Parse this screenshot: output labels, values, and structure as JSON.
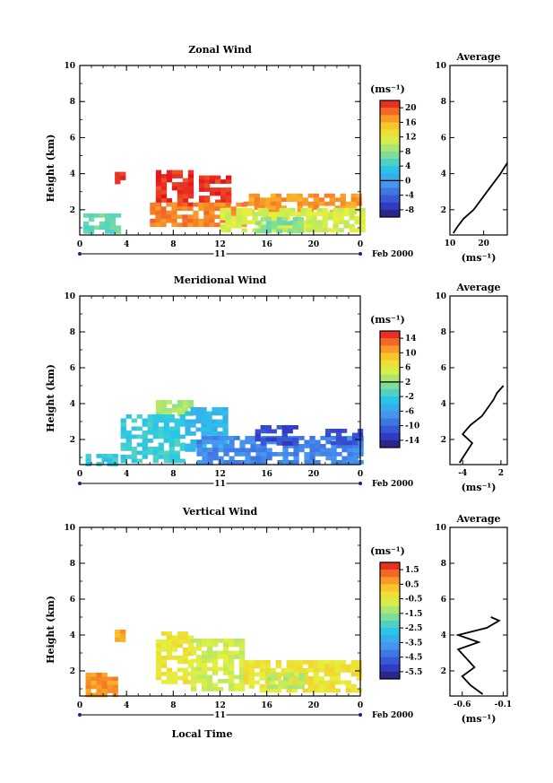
{
  "chart_data": [
    {
      "type": "heatmap",
      "title": "Zonal Wind",
      "ylabel": "Height (km)",
      "x_ticks": [
        "0",
        "4",
        "8",
        "12",
        "16",
        "20",
        "0"
      ],
      "y_ticks": [
        "2",
        "4",
        "6",
        "8",
        "10"
      ],
      "xlim": [
        0,
        24
      ],
      "ylim": [
        0.6,
        10
      ],
      "day_label": "11",
      "date_label": "Feb 2000",
      "colorbar_unit": "(ms⁻¹)",
      "colorbar_ticks": [
        "20",
        "16",
        "12",
        "8",
        "4",
        "0",
        "-4",
        "-8"
      ],
      "colorbar_range": [
        -10,
        22
      ],
      "colorbar_zero_line": 0,
      "regions": [
        {
          "x0": 0.3,
          "x1": 3.5,
          "y0": 0.7,
          "y1": 1.8,
          "value": 6
        },
        {
          "x0": 3.0,
          "x1": 3.6,
          "y0": 3.6,
          "y1": 4.1,
          "value": 21
        },
        {
          "x0": 6.5,
          "x1": 9.5,
          "y0": 2.3,
          "y1": 4.2,
          "value": 21
        },
        {
          "x0": 10.2,
          "x1": 12.6,
          "y0": 2.3,
          "y1": 3.9,
          "value": 21
        },
        {
          "x0": 6.0,
          "x1": 14.0,
          "y0": 1.2,
          "y1": 2.4,
          "value": 18
        },
        {
          "x0": 14.0,
          "x1": 24.0,
          "y0": 2.0,
          "y1": 2.9,
          "value": 17
        },
        {
          "x0": 12.0,
          "x1": 24.0,
          "y0": 0.8,
          "y1": 2.1,
          "value": 11
        },
        {
          "x0": 15.0,
          "x1": 19.0,
          "y0": 0.9,
          "y1": 1.6,
          "value": 7
        }
      ],
      "average_profile": {
        "title": "Average",
        "x_ticks": [
          "10",
          "20"
        ],
        "xlim": [
          10,
          27
        ],
        "xlabel": "(ms⁻¹)",
        "y_ticks": [
          "2",
          "4",
          "6",
          "8",
          "10"
        ],
        "heights": [
          0.7,
          1.0,
          1.5,
          2.0,
          2.5,
          3.0,
          3.5,
          4.0,
          4.3,
          4.6
        ],
        "values": [
          11,
          12,
          14,
          17,
          19,
          21,
          23,
          25,
          26,
          27
        ]
      }
    },
    {
      "type": "heatmap",
      "title": "Meridional Wind",
      "ylabel": "Height (km)",
      "x_ticks": [
        "0",
        "4",
        "8",
        "12",
        "16",
        "20",
        "0"
      ],
      "y_ticks": [
        "2",
        "4",
        "6",
        "8",
        "10"
      ],
      "xlim": [
        0,
        24
      ],
      "ylim": [
        0.6,
        10
      ],
      "day_label": "11",
      "date_label": "Feb 2000",
      "colorbar_unit": "(ms⁻¹)",
      "colorbar_ticks": [
        "14",
        "10",
        "6",
        "2",
        "-2",
        "-6",
        "-10",
        "-14"
      ],
      "colorbar_range": [
        -16,
        16
      ],
      "colorbar_zero_line": 2,
      "regions": [
        {
          "x0": 0.5,
          "x1": 3.0,
          "y0": 0.7,
          "y1": 1.2,
          "value": -2
        },
        {
          "x0": 6.5,
          "x1": 9.5,
          "y0": 3.5,
          "y1": 4.2,
          "value": 3
        },
        {
          "x0": 3.5,
          "x1": 9.0,
          "y0": 0.9,
          "y1": 3.4,
          "value": -2
        },
        {
          "x0": 9.0,
          "x1": 12.5,
          "y0": 1.5,
          "y1": 3.8,
          "value": -4
        },
        {
          "x0": 10.0,
          "x1": 24.0,
          "y0": 0.7,
          "y1": 2.2,
          "value": -8
        },
        {
          "x0": 15.0,
          "x1": 18.5,
          "y0": 1.8,
          "y1": 2.8,
          "value": -12
        },
        {
          "x0": 21.0,
          "x1": 24.0,
          "y0": 1.9,
          "y1": 2.6,
          "value": -12
        }
      ],
      "average_profile": {
        "title": "Average",
        "x_ticks": [
          "-4",
          "2"
        ],
        "xlim": [
          -6,
          3
        ],
        "xlabel": "(ms⁻¹)",
        "y_ticks": [
          "2",
          "4",
          "6",
          "8",
          "10"
        ],
        "heights": [
          0.7,
          1.2,
          1.8,
          2.3,
          2.8,
          3.3,
          3.8,
          4.2,
          4.6,
          5.0
        ],
        "values": [
          -4.5,
          -3.6,
          -2.5,
          -4.0,
          -2.8,
          -1.0,
          0.0,
          0.8,
          1.4,
          2.4
        ]
      }
    },
    {
      "type": "heatmap",
      "title": "Vertical Wind",
      "ylabel": "Height (km)",
      "xlabel": "Local Time",
      "x_ticks": [
        "0",
        "4",
        "8",
        "12",
        "16",
        "20",
        "0"
      ],
      "y_ticks": [
        "2",
        "4",
        "6",
        "8",
        "10"
      ],
      "xlim": [
        0,
        24
      ],
      "ylim": [
        0.6,
        10
      ],
      "day_label": "11",
      "date_label": "Feb 2000",
      "colorbar_unit": "(ms⁻¹)",
      "colorbar_ticks": [
        "1.5",
        "0.5",
        "-0.5",
        "-1.5",
        "-2.5",
        "-3.5",
        "-4.5",
        "-5.5"
      ],
      "colorbar_range": [
        -6,
        2
      ],
      "regions": [
        {
          "x0": 0.5,
          "x1": 3.2,
          "y0": 0.7,
          "y1": 1.9,
          "value": 0.8
        },
        {
          "x0": 3.0,
          "x1": 3.5,
          "y0": 3.8,
          "y1": 4.3,
          "value": 0.6
        },
        {
          "x0": 6.5,
          "x1": 9.5,
          "y0": 1.4,
          "y1": 4.2,
          "value": -0.4
        },
        {
          "x0": 9.5,
          "x1": 14.0,
          "y0": 1.0,
          "y1": 3.8,
          "value": -0.8
        },
        {
          "x0": 14.0,
          "x1": 24.0,
          "y0": 0.8,
          "y1": 2.6,
          "value": -0.3
        },
        {
          "x0": 16.0,
          "x1": 19.0,
          "y0": 1.2,
          "y1": 1.9,
          "value": -1.1
        }
      ],
      "average_profile": {
        "title": "Average",
        "x_ticks": [
          "-0.6",
          "-0.1"
        ],
        "xlim": [
          -0.75,
          -0.05
        ],
        "xlabel": "(ms⁻¹)",
        "y_ticks": [
          "2",
          "4",
          "6",
          "8",
          "10"
        ],
        "heights": [
          0.7,
          1.2,
          1.7,
          2.2,
          2.7,
          3.2,
          3.6,
          4.0,
          4.4,
          4.8,
          5.0
        ],
        "values": [
          -0.35,
          -0.5,
          -0.6,
          -0.45,
          -0.55,
          -0.65,
          -0.4,
          -0.65,
          -0.3,
          -0.15,
          -0.25
        ]
      }
    }
  ]
}
